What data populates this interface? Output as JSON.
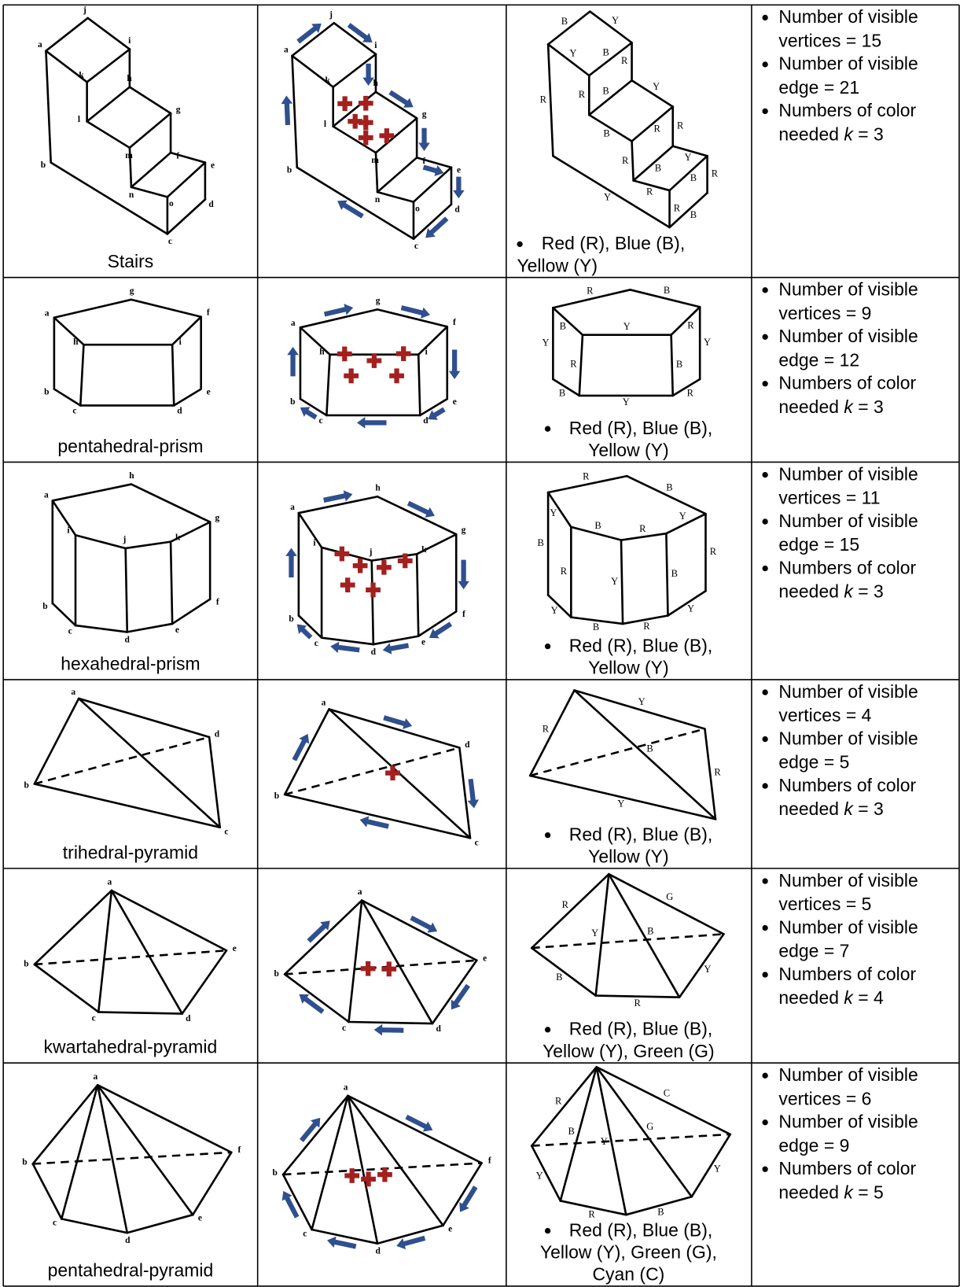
{
  "rows": [
    {
      "name": "Stairs",
      "vertices": [
        "a",
        "b",
        "c",
        "d",
        "e",
        "f",
        "g",
        "h",
        "i",
        "j",
        "k",
        "l",
        "m",
        "n",
        "o"
      ],
      "edge_colors": [
        "B",
        "Y",
        "B",
        "Y",
        "R",
        "R",
        "B",
        "Y",
        "R",
        "B",
        "R",
        "R",
        "B",
        "Y",
        "B",
        "R",
        "R",
        "R",
        "B",
        "R",
        "Y"
      ],
      "legend": "Red (R), Blue (B), Yellow (Y)",
      "facts": [
        "Number of visible vertices = 15",
        "Number of visible edge = 21",
        [
          "Numbers of color needed",
          "k",
          "= 3"
        ]
      ]
    },
    {
      "name": "pentahedral-prism",
      "vertices": [
        "a",
        "b",
        "c",
        "d",
        "e",
        "f",
        "g",
        "h",
        "i"
      ],
      "edge_colors": [
        "R",
        "B",
        "B",
        "Y",
        "R",
        "Y",
        "R",
        "B",
        "Y",
        "B",
        "Y",
        "R"
      ],
      "legend": "Red (R), Blue (B), Yellow (Y)",
      "facts": [
        "Number of visible vertices = 9",
        "Number of visible edge = 12",
        [
          "Numbers of color needed",
          "k",
          "= 3"
        ]
      ]
    },
    {
      "name": "hexahedral-prism",
      "vertices": [
        "a",
        "b",
        "c",
        "d",
        "e",
        "f",
        "g",
        "h",
        "i",
        "j",
        "k"
      ],
      "edge_colors": [
        "R",
        "B",
        "Y",
        "B",
        "R",
        "Y",
        "B",
        "R",
        "Y",
        "B",
        "R",
        "Y",
        "B",
        "R",
        "Y"
      ],
      "legend": "Red (R), Blue (B), Yellow (Y)",
      "facts": [
        "Number of visible vertices = 11",
        "Number of visible edge = 15",
        [
          "Numbers of color needed",
          "k",
          "= 3"
        ]
      ]
    },
    {
      "name": "trihedral-pyramid",
      "vertices": [
        "a",
        "b",
        "c",
        "d"
      ],
      "edge_colors": [
        "R",
        "Y",
        "R",
        "Y",
        "B"
      ],
      "legend": "Red (R), Blue (B), Yellow (Y)",
      "facts": [
        "Number of visible vertices = 4",
        "Number of visible edge = 5",
        [
          "Numbers of color needed",
          "k",
          "= 3"
        ]
      ]
    },
    {
      "name": "kwartahedral-pyramid",
      "vertices": [
        "a",
        "b",
        "c",
        "d",
        "e"
      ],
      "edge_colors": [
        "R",
        "Y",
        "B",
        "G",
        "B",
        "R",
        "Y"
      ],
      "legend": "Red (R), Blue (B), Yellow (Y), Green (G)",
      "facts": [
        "Number of visible vertices = 5",
        "Number of visible edge = 7",
        [
          "Numbers of color needed",
          "k",
          "= 4"
        ]
      ]
    },
    {
      "name": "pentahedral-pyramid",
      "vertices": [
        "a",
        "b",
        "c",
        "d",
        "e",
        "f"
      ],
      "edge_colors": [
        "R",
        "B",
        "Y",
        "G",
        "C",
        "Y",
        "R",
        "B",
        "Y"
      ],
      "legend": "Red (R), Blue (B), Yellow (Y), Green (G), Cyan (C)",
      "facts": [
        "Number of visible vertices = 6",
        "Number of visible edge = 9",
        [
          "Numbers of color needed",
          "k",
          "= 5"
        ]
      ]
    }
  ]
}
